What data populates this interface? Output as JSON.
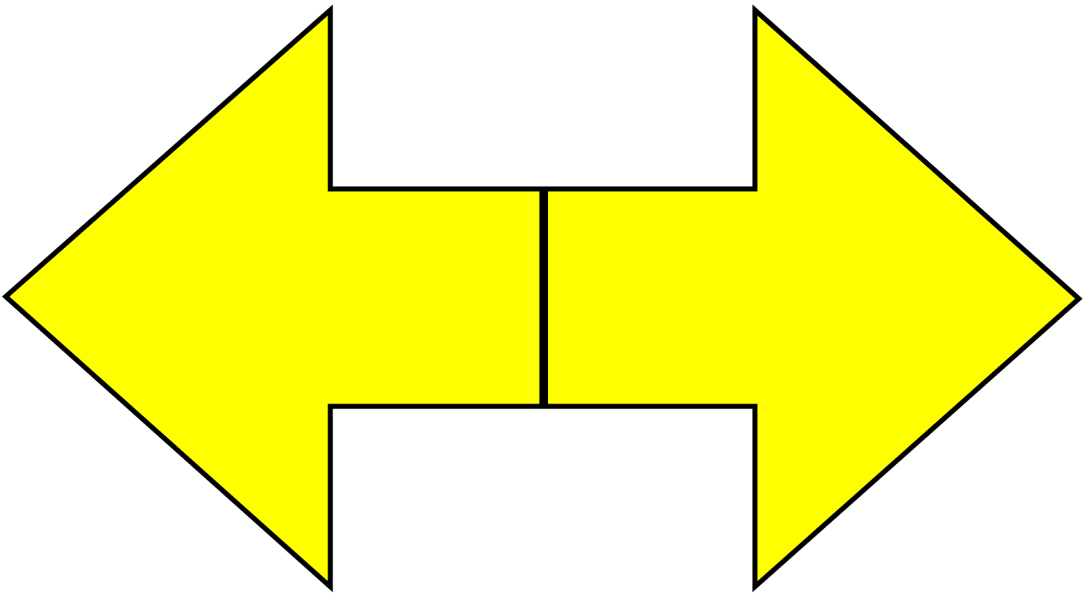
{
  "graphic": {
    "shapes": [
      {
        "name": "left-arrow",
        "direction": "left"
      },
      {
        "name": "right-arrow",
        "direction": "right"
      }
    ],
    "colors": {
      "fill": "#ffff00",
      "stroke": "#000000",
      "background": "#ffffff"
    }
  }
}
